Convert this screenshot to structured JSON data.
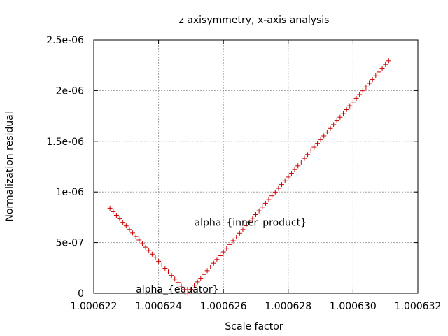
{
  "chart_data": {
    "type": "scatter",
    "title": "z axisymmetry, x-axis analysis",
    "xlabel": "Scale factor",
    "ylabel": "Normalization residual",
    "xlim": [
      1.000622,
      1.000632
    ],
    "ylim": [
      0,
      2.5e-06
    ],
    "x_ticks": [
      1.000622,
      1.000624,
      1.000626,
      1.000628,
      1.00063,
      1.000632
    ],
    "x_tick_labels": [
      "1.000622",
      "1.000624",
      "1.000626",
      "1.000628",
      "1.000630",
      "1.000632"
    ],
    "y_ticks": [
      0,
      5e-07,
      1e-06,
      1.5e-06,
      2e-06,
      2.5e-06
    ],
    "y_tick_labels": [
      "0",
      "5e-07",
      "1e-06",
      "1.5e-06",
      "2e-06",
      "2.5e-06"
    ],
    "grid": true,
    "marker": "+",
    "marker_color": "#cc0000",
    "series": [
      {
        "x_start": 1.0006225,
        "x_step": 1e-07,
        "x_vertex": 1.0006249,
        "y_at_vertex": 0,
        "left_slope": 0.35,
        "right_slope": 0.37,
        "x_end": 1.0006311
      }
    ],
    "annotations": [
      {
        "text": "alpha_{inner_product}",
        "x": 1.0006251,
        "y": 7e-07
      },
      {
        "text": "alpha_{equator}",
        "x": 1.0006233,
        "y": 4e-08
      }
    ]
  }
}
